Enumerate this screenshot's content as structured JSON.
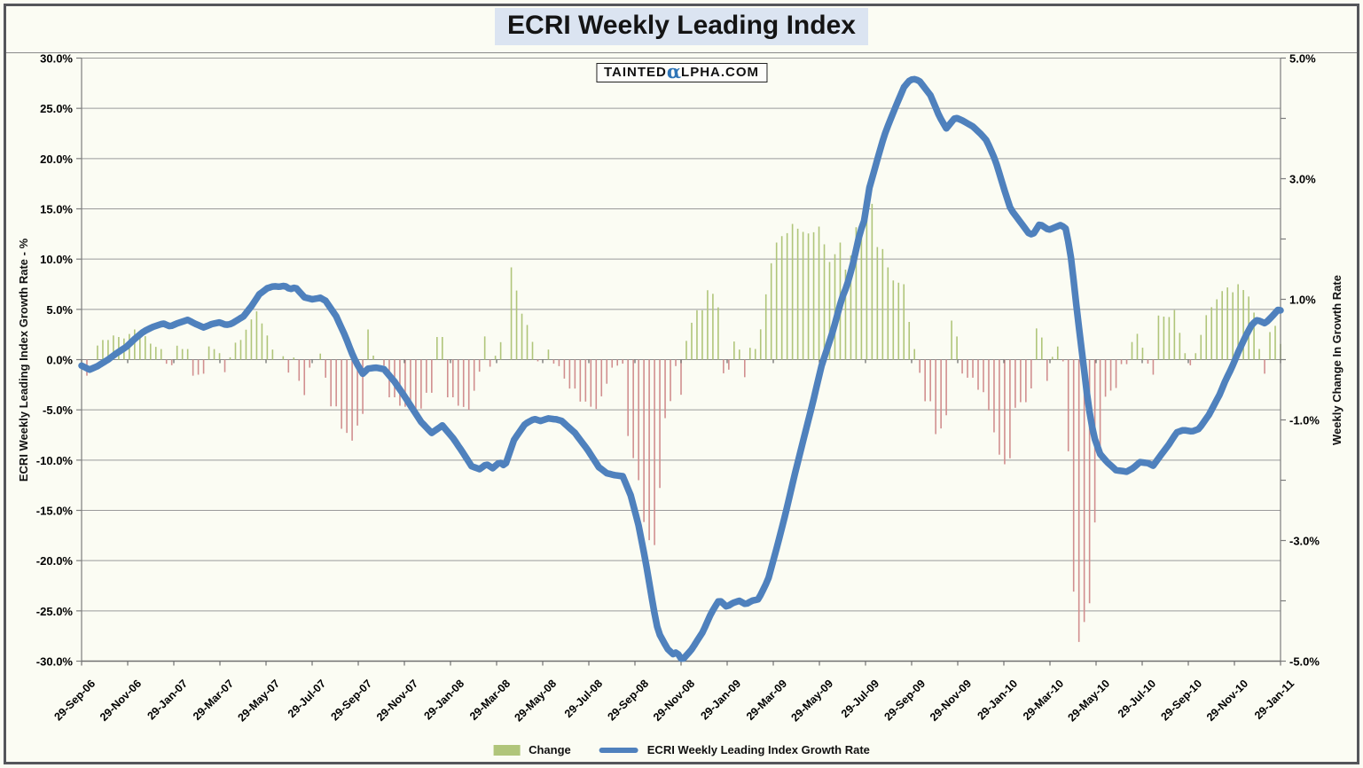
{
  "header": {
    "title": "ECRI Weekly Leading Index"
  },
  "watermark": {
    "part1": "TAINTED",
    "alpha_glyph": "α",
    "part2": "LPHA.COM"
  },
  "legend": [
    {
      "label": "Change",
      "swatch": "bar",
      "color_positive": "#b0c57a",
      "color_negative": "#d18f8f"
    },
    {
      "label": "ECRI Weekly Leading Index Growth Rate",
      "swatch": "line",
      "color": "#4f81bd"
    }
  ],
  "chart_data": {
    "type": "line+bar",
    "title": "ECRI Weekly Leading Index",
    "grid": "horizontal",
    "legend_position": "bottom-center",
    "left_axis": {
      "label": "ECRI Weekly Leading Index Growth Rate - %",
      "min": -30,
      "max": 30,
      "tick_step": 5,
      "tick_values": [
        30,
        25,
        20,
        15,
        10,
        5,
        0,
        -5,
        -10,
        -15,
        -20,
        -25,
        -30
      ],
      "tick_labels": [
        "30.0%",
        "25.0%",
        "20.0%",
        "15.0%",
        "10.0%",
        "5.0%",
        "0.0%",
        "-5.0%",
        "-10.0%",
        "-15.0%",
        "-20.0%",
        "-25.0%",
        "-30.0%"
      ]
    },
    "right_axis": {
      "label": "Weekly Change In Growth Rate",
      "min": -5,
      "max": 5,
      "tick_values": [
        5,
        3,
        1,
        -1,
        -3,
        -5
      ],
      "tick_labels": [
        "5.0%",
        "3.0%",
        "1.0%",
        "-1.0%",
        "-3.0%",
        "-5.0%"
      ],
      "minor_tick_values": [
        4,
        2,
        0,
        -2,
        -4
      ]
    },
    "x_axis": {
      "unit": "weeks since first point",
      "weeks_total": 226,
      "tick_labels": [
        "29-Sep-06",
        "29-Nov-06",
        "29-Jan-07",
        "29-Mar-07",
        "29-May-07",
        "29-Jul-07",
        "29-Sep-07",
        "29-Nov-07",
        "29-Jan-08",
        "29-Mar-08",
        "29-May-08",
        "29-Jul-08",
        "29-Sep-08",
        "29-Nov-08",
        "29-Jan-09",
        "29-Mar-09",
        "29-May-09",
        "29-Jul-09",
        "29-Sep-09",
        "29-Nov-09",
        "29-Jan-10",
        "29-Mar-10",
        "29-May-10",
        "29-Jul-10",
        "29-Sep-10",
        "29-Nov-10",
        "29-Jan-11"
      ]
    },
    "series": [
      {
        "name": "ECRI Weekly Leading Index Growth Rate",
        "type": "line",
        "axis": "left",
        "color": "#4f81bd",
        "stroke_width": 7.5,
        "anchor_points_week_value": [
          [
            0,
            -0.6
          ],
          [
            1.5,
            -1.0
          ],
          [
            3,
            -0.65
          ],
          [
            5,
            0.0
          ],
          [
            6.5,
            0.6
          ],
          [
            8.5,
            1.3
          ],
          [
            10,
            2.05
          ],
          [
            11.7,
            2.8
          ],
          [
            13.4,
            3.25
          ],
          [
            15.4,
            3.6
          ],
          [
            16.7,
            3.3
          ],
          [
            18,
            3.6
          ],
          [
            20,
            3.95
          ],
          [
            21.5,
            3.55
          ],
          [
            23,
            3.2
          ],
          [
            24.6,
            3.55
          ],
          [
            26,
            3.7
          ],
          [
            27.2,
            3.45
          ],
          [
            28.2,
            3.55
          ],
          [
            30.5,
            4.3
          ],
          [
            32,
            5.3
          ],
          [
            33.5,
            6.5
          ],
          [
            35,
            7.1
          ],
          [
            36.2,
            7.3
          ],
          [
            37.3,
            7.25
          ],
          [
            38.3,
            7.35
          ],
          [
            39.3,
            7.0
          ],
          [
            40.3,
            7.2
          ],
          [
            42,
            6.2
          ],
          [
            43.5,
            6.0
          ],
          [
            45,
            6.15
          ],
          [
            46,
            5.85
          ],
          [
            48,
            4.3
          ],
          [
            49.7,
            2.35
          ],
          [
            50.5,
            1.25
          ],
          [
            51.3,
            0.2
          ],
          [
            52.2,
            -0.7
          ],
          [
            53,
            -1.4
          ],
          [
            54,
            -0.9
          ],
          [
            55.5,
            -0.8
          ],
          [
            57,
            -0.95
          ],
          [
            59,
            -2.2
          ],
          [
            60.7,
            -3.5
          ],
          [
            62.4,
            -4.9
          ],
          [
            64,
            -6.2
          ],
          [
            66,
            -7.3
          ],
          [
            68,
            -6.55
          ],
          [
            70,
            -7.8
          ],
          [
            71.7,
            -9.1
          ],
          [
            73.5,
            -10.6
          ],
          [
            75,
            -10.9
          ],
          [
            76.3,
            -10.4
          ],
          [
            77.5,
            -10.8
          ],
          [
            78.8,
            -10.2
          ],
          [
            79.8,
            -10.6
          ],
          [
            81.5,
            -8.0
          ],
          [
            83.6,
            -6.4
          ],
          [
            85.3,
            -5.9
          ],
          [
            86.5,
            -6.1
          ],
          [
            88,
            -5.85
          ],
          [
            89.5,
            -5.95
          ],
          [
            90.5,
            -6.1
          ],
          [
            93,
            -7.3
          ],
          [
            95.3,
            -8.9
          ],
          [
            97.5,
            -10.7
          ],
          [
            99,
            -11.3
          ],
          [
            100.5,
            -11.5
          ],
          [
            102,
            -11.6
          ],
          [
            103.5,
            -13.5
          ],
          [
            105,
            -16.5
          ],
          [
            106.3,
            -20.0
          ],
          [
            107.9,
            -25.0
          ],
          [
            108.7,
            -27.1
          ],
          [
            110.4,
            -28.75
          ],
          [
            111.5,
            -29.3
          ],
          [
            112.2,
            -29.1
          ],
          [
            113.2,
            -29.9
          ],
          [
            114.9,
            -28.9
          ],
          [
            117.1,
            -27.1
          ],
          [
            118.7,
            -25.2
          ],
          [
            120.2,
            -23.9
          ],
          [
            121.6,
            -24.6
          ],
          [
            122.8,
            -24.2
          ],
          [
            124,
            -24.0
          ],
          [
            125.2,
            -24.35
          ],
          [
            126.3,
            -24.0
          ],
          [
            127.6,
            -23.85
          ],
          [
            129.4,
            -21.9
          ],
          [
            131.1,
            -18.6
          ],
          [
            132.8,
            -15.1
          ],
          [
            134.4,
            -11.5
          ],
          [
            136.1,
            -7.9
          ],
          [
            137.8,
            -4.35
          ],
          [
            139.5,
            -0.6
          ],
          [
            141.6,
            2.8
          ],
          [
            143.3,
            6.1
          ],
          [
            144.3,
            7.4
          ],
          [
            145.4,
            9.5
          ],
          [
            146.7,
            12.6
          ],
          [
            147.5,
            13.8
          ],
          [
            148.5,
            17.1
          ],
          [
            150,
            19.9
          ],
          [
            151.2,
            22.1
          ],
          [
            151.8,
            23.0
          ],
          [
            153.4,
            25.1
          ],
          [
            155,
            27.1
          ],
          [
            156.2,
            27.85
          ],
          [
            157,
            27.9
          ],
          [
            157.9,
            27.75
          ],
          [
            160,
            26.3
          ],
          [
            161.7,
            24.2
          ],
          [
            163,
            23.0
          ],
          [
            164.7,
            24.1
          ],
          [
            166,
            23.8
          ],
          [
            168,
            23.2
          ],
          [
            169.6,
            22.4
          ],
          [
            170.6,
            21.8
          ],
          [
            172.3,
            19.75
          ],
          [
            174,
            16.8
          ],
          [
            175.1,
            15.0
          ],
          [
            176.8,
            13.8
          ],
          [
            178.5,
            12.6
          ],
          [
            179.3,
            12.4
          ],
          [
            180.6,
            13.5
          ],
          [
            182.3,
            12.9
          ],
          [
            184.6,
            13.4
          ],
          [
            185.6,
            13.0
          ],
          [
            186.6,
            9.8
          ],
          [
            187.7,
            4.5
          ],
          [
            188.8,
            -0.3
          ],
          [
            189.8,
            -4.6
          ],
          [
            190.8,
            -7.6
          ],
          [
            192,
            -9.4
          ],
          [
            193.3,
            -10.2
          ],
          [
            195,
            -11.0
          ],
          [
            197,
            -11.15
          ],
          [
            198.2,
            -10.8
          ],
          [
            199.5,
            -10.2
          ],
          [
            201,
            -10.3
          ],
          [
            202,
            -10.55
          ],
          [
            203.3,
            -9.6
          ],
          [
            205,
            -8.4
          ],
          [
            206.4,
            -7.25
          ],
          [
            207.7,
            -7.0
          ],
          [
            209.3,
            -7.15
          ],
          [
            210.6,
            -6.9
          ],
          [
            212.5,
            -5.5
          ],
          [
            214.5,
            -3.5
          ],
          [
            215.6,
            -2.1
          ],
          [
            216.8,
            -0.8
          ],
          [
            218,
            0.7
          ],
          [
            219.3,
            2.2
          ],
          [
            220.6,
            3.5
          ],
          [
            221.6,
            3.95
          ],
          [
            223.1,
            3.6
          ],
          [
            224.6,
            4.4
          ],
          [
            225.6,
            5.0
          ],
          [
            226,
            4.9
          ]
        ]
      },
      {
        "name": "Change",
        "type": "bar",
        "axis": "right",
        "color_positive": "#b0c57a",
        "color_negative": "#d18f8f",
        "definition": "weekly first difference of the growth-rate series, clipped to right axis range"
      }
    ]
  },
  "colors": {
    "line_blue": "#4f81bd",
    "bar_green": "#b0c57a",
    "bar_red": "#d18f8f",
    "title_highlight": "#dbe4f1",
    "gridline": "#9a9a9a",
    "axis": "#7d7d7d",
    "background": "#fbfcf3",
    "frame_border": "#55565a",
    "alpha_blue": "#2e75b6"
  }
}
